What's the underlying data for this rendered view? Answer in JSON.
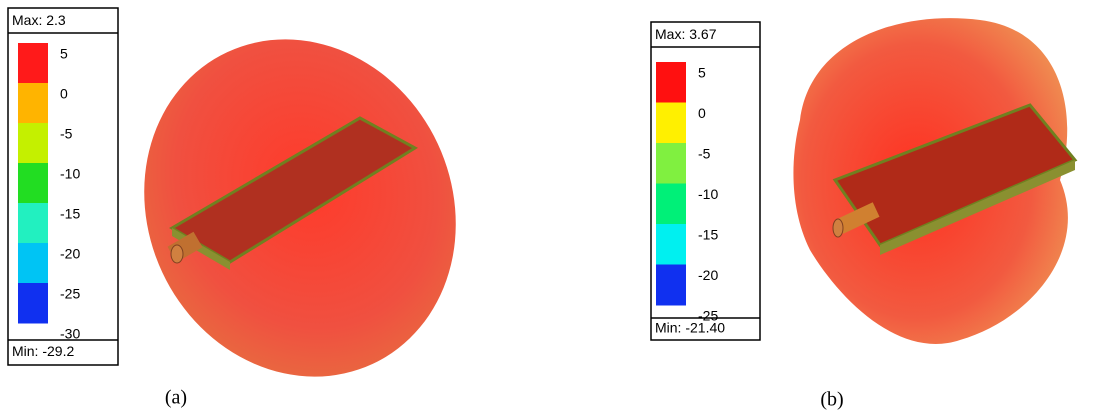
{
  "panels": [
    {
      "max_label": "Max: 2.3",
      "min_label": "Min: -29.2",
      "scale": [
        5,
        0,
        -5,
        -10,
        -15,
        -20,
        -25,
        -30
      ],
      "scale_colors": [
        "#ff1a1a",
        "#ffb400",
        "#c4f000",
        "#22dd22",
        "#22f0c0",
        "#00c4f4",
        "#1030f0"
      ],
      "caption": "(a)"
    },
    {
      "max_label": "Max: 3.67",
      "min_label": "Min: -21.40",
      "scale": [
        5,
        0,
        -5,
        -10,
        -15,
        -20,
        -25
      ],
      "scale_colors": [
        "#ff1010",
        "#fff000",
        "#80f040",
        "#00f078",
        "#00f0f0",
        "#1030f0"
      ],
      "caption": "(b)"
    }
  ]
}
